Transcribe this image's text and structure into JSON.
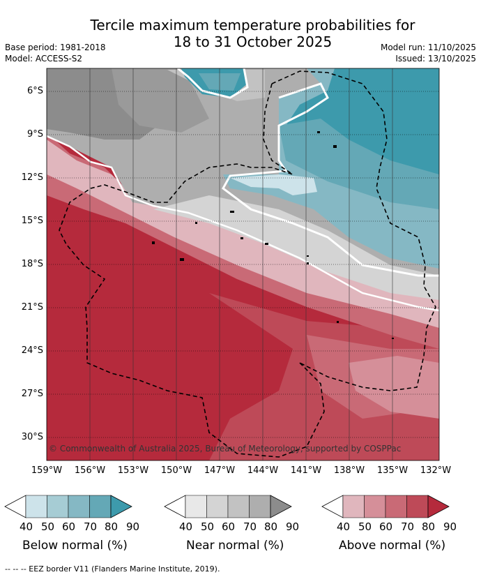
{
  "title_line1": "Tercile maximum temperature probabilities for",
  "title_line2": "18 to 31 October 2025",
  "base_period": "Base period: 1981-2018",
  "model": "Model: ACCESS-S2",
  "model_run": "Model run: 11/10/2025",
  "issued": "Issued: 13/10/2025",
  "copyright": "© Commonwealth of Australia 2025, Bureau of Meteorology, supported by COSPPac",
  "lat_labels": [
    "6°S",
    "9°S",
    "12°S",
    "15°S",
    "18°S",
    "21°S",
    "24°S",
    "27°S",
    "30°S"
  ],
  "lon_labels": [
    "159°W",
    "156°W",
    "153°W",
    "150°W",
    "147°W",
    "144°W",
    "141°W",
    "138°W",
    "135°W",
    "132°W"
  ],
  "legends": [
    {
      "label": "Below normal (%)",
      "ticks": [
        "40",
        "50",
        "60",
        "70",
        "80",
        "90"
      ],
      "colors": [
        "#ffffff",
        "#cde3ea",
        "#a6ccd4",
        "#85b8c4",
        "#64a8b6",
        "#3d9aac"
      ]
    },
    {
      "label": "Near normal (%)",
      "ticks": [
        "40",
        "50",
        "60",
        "70",
        "80",
        "90"
      ],
      "colors": [
        "#ffffff",
        "#e8e8e8",
        "#d4d4d4",
        "#c2c2c2",
        "#aeaeae",
        "#8c8c8c"
      ]
    },
    {
      "label": "Above normal (%)",
      "ticks": [
        "40",
        "50",
        "60",
        "70",
        "80",
        "90"
      ],
      "colors": [
        "#ffffff",
        "#e0b6bd",
        "#d58f99",
        "#c96a76",
        "#be4a58",
        "#b52a3c"
      ]
    }
  ],
  "footer": "--  --  -- EEZ border V11 (Flanders Marine Institute, 2019)."
}
